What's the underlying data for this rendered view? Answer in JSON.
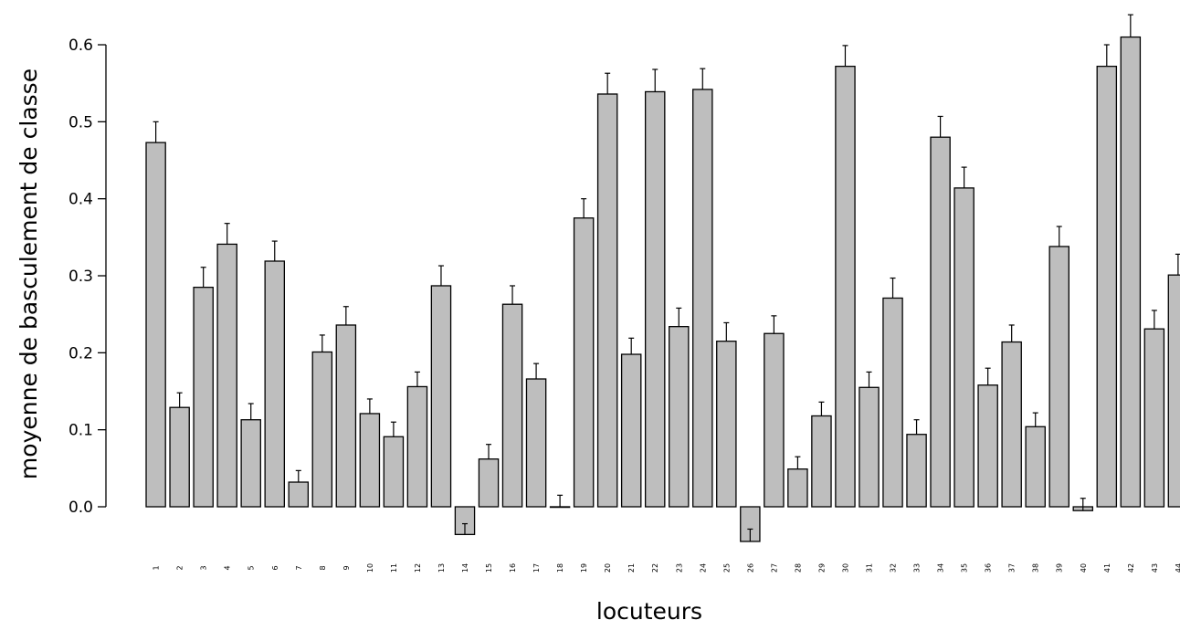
{
  "chart_data": {
    "type": "bar",
    "title": "",
    "xlabel": "locuteurs",
    "ylabel": "moyenne de basculement de classe",
    "ylim": [
      -0.06,
      0.64
    ],
    "yticks": [
      "0.0",
      "0.1",
      "0.2",
      "0.3",
      "0.4",
      "0.5",
      "0.6"
    ],
    "grid": false,
    "legend": "none",
    "bar_color": "#bebebe",
    "edge_color": "#000000",
    "categories": [
      "1",
      "2",
      "3",
      "4",
      "5",
      "6",
      "7",
      "8",
      "9",
      "10",
      "11",
      "12",
      "13",
      "14",
      "15",
      "16",
      "17",
      "18",
      "19",
      "20",
      "21",
      "22",
      "23",
      "24",
      "25",
      "26",
      "27",
      "28",
      "29",
      "30",
      "31",
      "32",
      "33",
      "34",
      "35",
      "36",
      "37",
      "38",
      "39",
      "40",
      "41",
      "42",
      "43",
      "44"
    ],
    "values": [
      0.473,
      0.129,
      0.285,
      0.341,
      0.113,
      0.319,
      0.032,
      0.201,
      0.236,
      0.121,
      0.091,
      0.156,
      0.287,
      -0.036,
      0.062,
      0.263,
      0.166,
      0.0,
      0.375,
      0.536,
      0.198,
      0.539,
      0.234,
      0.542,
      0.215,
      -0.045,
      0.225,
      0.049,
      0.118,
      0.572,
      0.155,
      0.271,
      0.094,
      0.48,
      0.414,
      0.158,
      0.214,
      0.104,
      0.338,
      -0.005,
      0.572,
      0.61,
      0.231,
      0.301
    ],
    "error_tops": [
      0.5,
      0.148,
      0.311,
      0.368,
      0.134,
      0.345,
      0.047,
      0.223,
      0.26,
      0.14,
      0.11,
      0.175,
      0.313,
      -0.022,
      0.081,
      0.287,
      0.186,
      0.015,
      0.4,
      0.563,
      0.219,
      0.568,
      0.258,
      0.569,
      0.239,
      -0.029,
      0.248,
      0.065,
      0.136,
      0.599,
      0.175,
      0.297,
      0.113,
      0.507,
      0.441,
      0.18,
      0.236,
      0.122,
      0.364,
      0.011,
      0.6,
      0.639,
      0.255,
      0.328
    ]
  }
}
